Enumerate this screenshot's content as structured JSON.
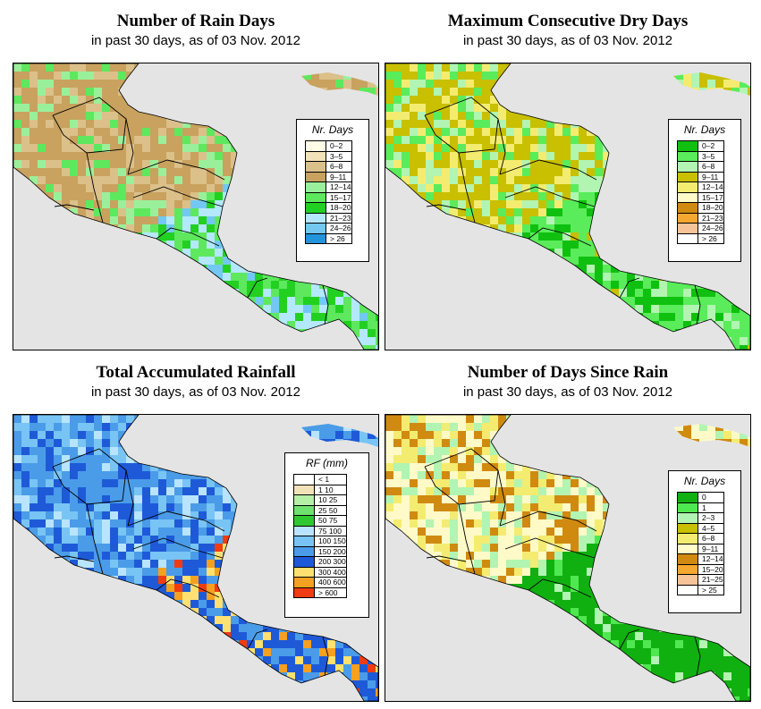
{
  "panels": [
    {
      "id": "rain-days",
      "title": "Number of Rain Days",
      "subtitle": "in past 30 days, as of  03 Nov. 2012",
      "legend_title": "Nr. Days",
      "legend": [
        {
          "label": "0–2",
          "color": "#fffde8"
        },
        {
          "label": "3–5",
          "color": "#f2e2b8"
        },
        {
          "label": "6–8",
          "color": "#dcc08a"
        },
        {
          "label": "9–11",
          "color": "#c8a25e"
        },
        {
          "label": "12–14",
          "color": "#9af09a"
        },
        {
          "label": "15–17",
          "color": "#5ee85e"
        },
        {
          "label": "18–20",
          "color": "#22d022"
        },
        {
          "label": "21–23",
          "color": "#b4e8ff"
        },
        {
          "label": "24–26",
          "color": "#72c8f2"
        },
        {
          "label": "> 26",
          "color": "#2294dc"
        }
      ]
    },
    {
      "id": "max-dry-days",
      "title": "Maximum Consecutive Dry Days",
      "subtitle": "in past 30 days, as of  03 Nov. 2012",
      "legend_title": "Nr. Days",
      "legend": [
        {
          "label": "0–2",
          "color": "#10c010"
        },
        {
          "label": "3–5",
          "color": "#5aec5a"
        },
        {
          "label": "6–8",
          "color": "#b2f4b2"
        },
        {
          "label": "9–11",
          "color": "#c8c000"
        },
        {
          "label": "12–14",
          "color": "#f4ec70"
        },
        {
          "label": "15–17",
          "color": "#fffac8"
        },
        {
          "label": "18–20",
          "color": "#d08a10"
        },
        {
          "label": "21–23",
          "color": "#f4a830"
        },
        {
          "label": "24–26",
          "color": "#f6c498"
        },
        {
          "label": "> 26",
          "color": "#ffffff"
        }
      ]
    },
    {
      "id": "total-rainfall",
      "title": "Total Accumulated Rainfall",
      "subtitle": "in past 30 days, as of  03 Nov. 2012",
      "legend_title": "RF (mm)",
      "legend": [
        {
          "label": "< 1",
          "color": "#ffffff"
        },
        {
          "label": "1   10",
          "color": "#f2e2b8"
        },
        {
          "label": "10   25",
          "color": "#b4f0a8"
        },
        {
          "label": "25   50",
          "color": "#6ee26e"
        },
        {
          "label": "50   75",
          "color": "#30c830"
        },
        {
          "label": "75   100",
          "color": "#b8e4ff"
        },
        {
          "label": "100   150",
          "color": "#78c4f4"
        },
        {
          "label": "150   200",
          "color": "#4a9ce8"
        },
        {
          "label": "200   300",
          "color": "#1e5ad8"
        },
        {
          "label": "300   400",
          "color": "#ffe070"
        },
        {
          "label": "400   600",
          "color": "#f4a020"
        },
        {
          "label": "> 600",
          "color": "#f03c10"
        }
      ]
    },
    {
      "id": "days-since-rain",
      "title": "Number of Days Since Rain",
      "subtitle": "in past 30 days, as of  03 Nov. 2012",
      "legend_title": "Nr. Days",
      "legend": [
        {
          "label": "0",
          "color": "#10b010"
        },
        {
          "label": "1",
          "color": "#50e850"
        },
        {
          "label": "2–3",
          "color": "#b2f4b2"
        },
        {
          "label": "4–5",
          "color": "#c8c000"
        },
        {
          "label": "6–8",
          "color": "#f4ec70"
        },
        {
          "label": "9–11",
          "color": "#fffac8"
        },
        {
          "label": "12–14",
          "color": "#d08a10"
        },
        {
          "label": "15–20",
          "color": "#f4a830"
        },
        {
          "label": "21–25",
          "color": "#f6c498"
        },
        {
          "label": "> 25",
          "color": "#ffffff"
        }
      ]
    }
  ]
}
